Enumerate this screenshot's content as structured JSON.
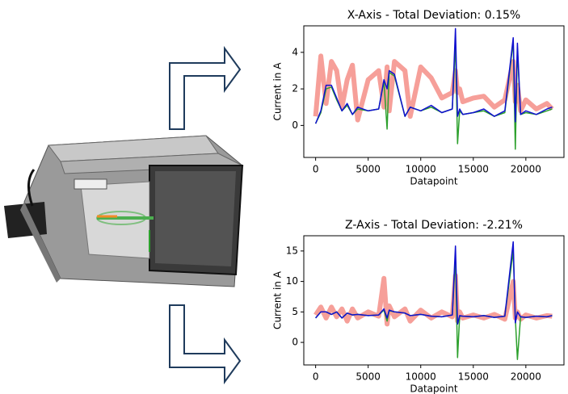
{
  "chart_data": [
    {
      "type": "line",
      "title": "X-Axis - Total Deviation: 0.15%",
      "x_label": "Datapoint",
      "y_label": "Current in A",
      "x": [
        0,
        500,
        1000,
        1500,
        2000,
        2500,
        3000,
        3500,
        4000,
        5000,
        6000,
        6500,
        6800,
        7000,
        7500,
        8500,
        9000,
        10000,
        11000,
        12000,
        13000,
        13300,
        13500,
        13700,
        14000,
        15000,
        16000,
        17000,
        18000,
        18800,
        19000,
        19200,
        19500,
        20000,
        21000,
        22000,
        22500
      ],
      "series": [
        {
          "color": "#f4877f",
          "values": [
            0.5,
            3.8,
            1.2,
            3.5,
            3.0,
            1.0,
            2.5,
            3.3,
            0.3,
            2.5,
            3.0,
            1.0,
            3.2,
            0.8,
            3.5,
            3.0,
            0.5,
            3.2,
            2.6,
            1.5,
            1.8,
            3.0,
            1.8,
            2.0,
            1.3,
            1.5,
            1.6,
            1.0,
            1.4,
            3.5,
            1.3,
            2.2,
            0.8,
            1.4,
            0.9,
            1.2,
            0.9
          ]
        },
        {
          "color": "#2ca02c",
          "values": [
            0.1,
            0.7,
            2.0,
            2.1,
            1.4,
            0.8,
            1.1,
            0.6,
            0.9,
            0.8,
            0.9,
            2.4,
            -0.2,
            2.9,
            2.7,
            0.5,
            1.0,
            0.8,
            1.0,
            0.7,
            0.9,
            4.5,
            -1.0,
            0.8,
            0.6,
            0.7,
            0.8,
            0.5,
            0.7,
            4.6,
            -1.3,
            4.2,
            0.6,
            0.7,
            0.6,
            0.8,
            0.9
          ]
        },
        {
          "color": "#1010d0",
          "values": [
            0.1,
            0.8,
            2.2,
            2.2,
            1.5,
            0.8,
            1.2,
            0.6,
            1.0,
            0.8,
            0.9,
            2.5,
            2.0,
            3.0,
            2.8,
            0.5,
            1.0,
            0.8,
            1.1,
            0.7,
            0.9,
            5.3,
            0.5,
            0.9,
            0.6,
            0.7,
            0.9,
            0.5,
            0.8,
            4.8,
            0.2,
            4.5,
            0.6,
            0.8,
            0.6,
            0.9,
            1.0
          ]
        }
      ],
      "xlim": [
        -1125,
        23625
      ],
      "ylim": [
        -1.75,
        5.45
      ],
      "xticks": [
        0,
        5000,
        10000,
        15000,
        20000
      ],
      "yticks": [
        0,
        2,
        4
      ]
    },
    {
      "type": "line",
      "title": "Z-Axis - Total Deviation: -2.21%",
      "x_label": "Datapoint",
      "y_label": "Current in A",
      "x": [
        0,
        500,
        1000,
        1500,
        2000,
        2500,
        3000,
        3500,
        4000,
        5000,
        6000,
        6500,
        6800,
        7000,
        7500,
        8500,
        9000,
        10000,
        11000,
        12000,
        13000,
        13300,
        13500,
        13700,
        14000,
        15000,
        16000,
        17000,
        18000,
        18800,
        19000,
        19200,
        19500,
        20000,
        21000,
        22000,
        22500
      ],
      "series": [
        {
          "color": "#f4877f",
          "values": [
            4.5,
            5.8,
            4,
            5.8,
            4.2,
            5.5,
            3.5,
            5.5,
            4,
            5,
            4.3,
            10.5,
            3,
            6,
            4.2,
            5.5,
            3.5,
            5.3,
            4,
            5,
            4.2,
            11,
            3.5,
            5,
            4,
            4.5,
            4,
            4.6,
            3.8,
            10,
            4,
            5,
            3.8,
            4.5,
            4,
            4.4,
            4.3
          ]
        },
        {
          "color": "#2ca02c",
          "values": [
            4,
            5,
            5,
            4.6,
            5,
            4,
            4.8,
            4.5,
            4.6,
            4.4,
            4.5,
            5.3,
            3.5,
            5.2,
            5,
            4.8,
            4.4,
            4.6,
            4.3,
            4.2,
            4.5,
            14,
            -2.5,
            4.3,
            4.3,
            4.2,
            4.4,
            4.1,
            4.3,
            15,
            4,
            -2.8,
            4.2,
            4.1,
            4.3,
            4.2,
            4.4
          ]
        },
        {
          "color": "#1010d0",
          "values": [
            4,
            5,
            5,
            4.6,
            5,
            4,
            4.8,
            4.5,
            4.6,
            4.4,
            4.5,
            5.5,
            4,
            5.3,
            5,
            4.8,
            4.4,
            4.6,
            4.3,
            4.2,
            4.5,
            15.8,
            3,
            4.4,
            4.3,
            4.2,
            4.4,
            4.1,
            4.3,
            16.5,
            3.2,
            5,
            4.2,
            4.1,
            4.3,
            4.2,
            4.4
          ]
        }
      ],
      "xlim": [
        -1125,
        23625
      ],
      "ylim": [
        -3.7,
        17.5
      ],
      "xticks": [
        0,
        5000,
        10000,
        15000,
        20000
      ],
      "yticks": [
        0,
        5,
        10,
        15
      ]
    }
  ]
}
